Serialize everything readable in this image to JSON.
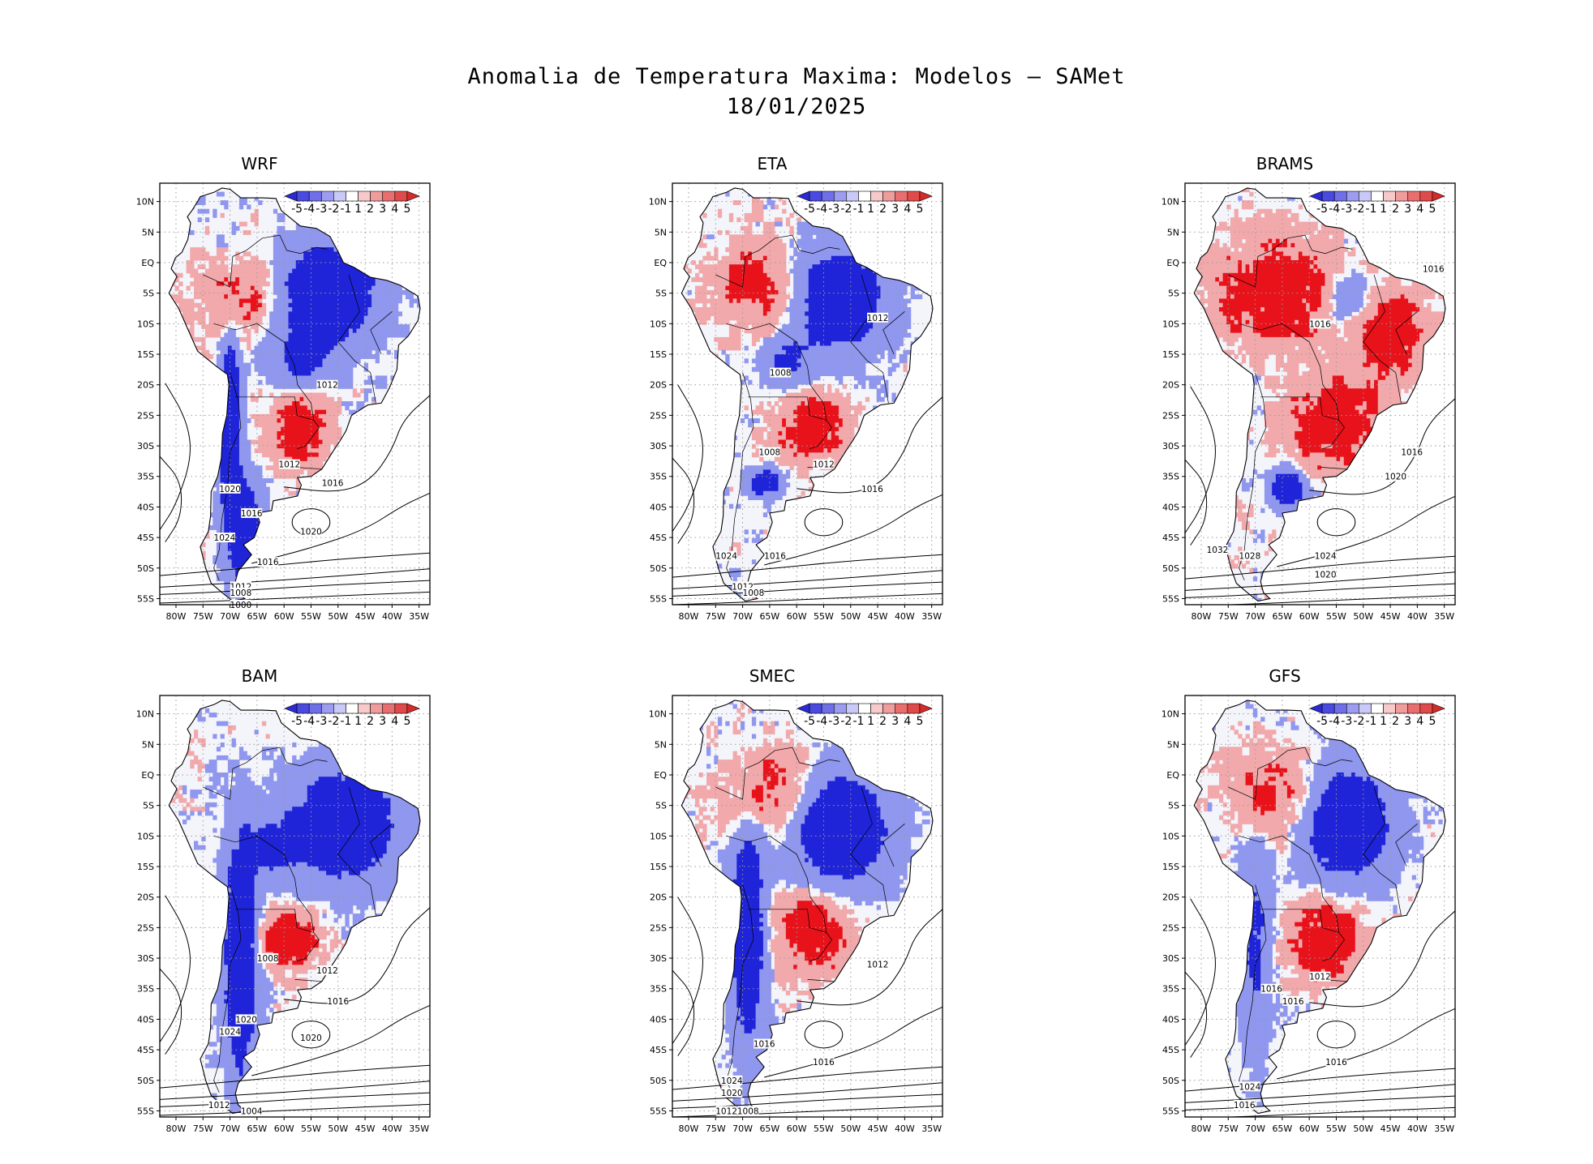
{
  "figure": {
    "title_line1": "Anomalia de Temperatura Maxima: Modelos – SAMet",
    "title_line2": "18/01/2025"
  },
  "map_extent": {
    "lon_min": -83,
    "lon_max": -33,
    "lat_min": -56,
    "lat_max": 13
  },
  "lon_ticks": [
    {
      "label": "80W",
      "value": -80
    },
    {
      "label": "75W",
      "value": -75
    },
    {
      "label": "70W",
      "value": -70
    },
    {
      "label": "65W",
      "value": -65
    },
    {
      "label": "60W",
      "value": -60
    },
    {
      "label": "55W",
      "value": -55
    },
    {
      "label": "50W",
      "value": -50
    },
    {
      "label": "45W",
      "value": -45
    },
    {
      "label": "40W",
      "value": -40
    },
    {
      "label": "35W",
      "value": -35
    }
  ],
  "lat_ticks": [
    {
      "label": "10N",
      "value": 10
    },
    {
      "label": "5N",
      "value": 5
    },
    {
      "label": "EQ",
      "value": 0
    },
    {
      "label": "5S",
      "value": -5
    },
    {
      "label": "10S",
      "value": -10
    },
    {
      "label": "15S",
      "value": -15
    },
    {
      "label": "20S",
      "value": -20
    },
    {
      "label": "25S",
      "value": -25
    },
    {
      "label": "30S",
      "value": -30
    },
    {
      "label": "35S",
      "value": -35
    },
    {
      "label": "40S",
      "value": -40
    },
    {
      "label": "45S",
      "value": -45
    },
    {
      "label": "50S",
      "value": -50
    },
    {
      "label": "55S",
      "value": -55
    }
  ],
  "colorbar": {
    "labels": [
      "-5",
      "-4",
      "-3",
      "-2",
      "-1",
      "1",
      "2",
      "3",
      "4",
      "5"
    ],
    "colors": [
      "#2b2bd4",
      "#4a4ae0",
      "#6f6fe8",
      "#9c9cf0",
      "#c9c9f7",
      "#ffffff",
      "#f7c9c9",
      "#f09c9c",
      "#e86f6f",
      "#e04a4a",
      "#d42b2b"
    ]
  },
  "colors": {
    "cold_strong": "#1f24d8",
    "cold_light": "#8f97ee",
    "warm_strong": "#e8121b",
    "warm_light": "#f2a9ab",
    "land": "#f4f4fb",
    "contour": "#000000",
    "grid": "#9a9a9a"
  },
  "panels": [
    {
      "name": "WRF",
      "anomalies": [
        {
          "lon": -52,
          "lat": -5,
          "rlon": 9,
          "rlat": 8,
          "sign": -1,
          "mag": 2
        },
        {
          "lon": -57,
          "lat": -16,
          "rlon": 6,
          "rlat": 5,
          "sign": -1,
          "mag": 1
        },
        {
          "lon": -68,
          "lat": -6,
          "rlon": 7,
          "rlat": 6,
          "sign": 1,
          "mag": 1
        },
        {
          "lon": -57,
          "lat": -27,
          "rlon": 5,
          "rlat": 5,
          "sign": 1,
          "mag": 2
        },
        {
          "lon": -70,
          "lat": -28,
          "rlon": 2,
          "rlat": 16,
          "sign": -1,
          "mag": 2
        },
        {
          "lon": -67,
          "lat": -44,
          "rlon": 3,
          "rlat": 8,
          "sign": -1,
          "mag": 2
        }
      ],
      "isobars": [
        {
          "label": "1016",
          "lon": -51,
          "lat": -36
        },
        {
          "label": "1020",
          "lon": -55,
          "lat": -44
        },
        {
          "label": "1012",
          "lon": -59,
          "lat": -33
        },
        {
          "label": "1012",
          "lon": -52,
          "lat": -20
        },
        {
          "label": "1016",
          "lon": -66,
          "lat": -41
        },
        {
          "label": "1024",
          "lon": -71,
          "lat": -45
        },
        {
          "label": "1016",
          "lon": -63,
          "lat": -49
        },
        {
          "label": "1012",
          "lon": -68,
          "lat": -53
        },
        {
          "label": "1008",
          "lon": -68,
          "lat": -54
        },
        {
          "label": "1000",
          "lon": -68,
          "lat": -56
        },
        {
          "label": "1020",
          "lon": -70,
          "lat": -37
        }
      ]
    },
    {
      "name": "ETA",
      "anomalies": [
        {
          "lon": -52,
          "lat": -6,
          "rlon": 8,
          "rlat": 8,
          "sign": -1,
          "mag": 2
        },
        {
          "lon": -62,
          "lat": -16,
          "rlon": 5,
          "rlat": 4,
          "sign": -1,
          "mag": 1
        },
        {
          "lon": -68,
          "lat": -4,
          "rlon": 8,
          "rlat": 7,
          "sign": 1,
          "mag": 1
        },
        {
          "lon": -57,
          "lat": -27,
          "rlon": 6,
          "rlat": 5,
          "sign": 1,
          "mag": 2
        },
        {
          "lon": -66,
          "lat": -36,
          "rlon": 3,
          "rlat": 2,
          "sign": -1,
          "mag": 2
        }
      ],
      "isobars": [
        {
          "label": "1016",
          "lon": -46,
          "lat": -37
        },
        {
          "label": "1012",
          "lon": -55,
          "lat": -33
        },
        {
          "label": "1008",
          "lon": -65,
          "lat": -31
        },
        {
          "label": "1012",
          "lon": -45,
          "lat": -9
        },
        {
          "label": "1008",
          "lon": -63,
          "lat": -18
        },
        {
          "label": "1016",
          "lon": -64,
          "lat": -48
        },
        {
          "label": "1024",
          "lon": -73,
          "lat": -48
        },
        {
          "label": "1012",
          "lon": -70,
          "lat": -53
        },
        {
          "label": "1008",
          "lon": -68,
          "lat": -54
        }
      ]
    },
    {
      "name": "BRAMS",
      "anomalies": [
        {
          "lon": -66,
          "lat": -5,
          "rlon": 10,
          "rlat": 8,
          "sign": 1,
          "mag": 2
        },
        {
          "lon": -45,
          "lat": -12,
          "rlon": 6,
          "rlat": 6,
          "sign": 1,
          "mag": 2
        },
        {
          "lon": -55,
          "lat": -26,
          "rlon": 8,
          "rlat": 7,
          "sign": 1,
          "mag": 2
        },
        {
          "lon": -53,
          "lat": -6,
          "rlon": 4,
          "rlat": 4,
          "sign": -1,
          "mag": 1
        },
        {
          "lon": -64,
          "lat": -37,
          "rlon": 3,
          "rlat": 3,
          "sign": -1,
          "mag": 2
        }
      ],
      "isobars": [
        {
          "label": "1016",
          "lon": -37,
          "lat": -1
        },
        {
          "label": "1016",
          "lon": -58,
          "lat": -10
        },
        {
          "label": "1016",
          "lon": -41,
          "lat": -31
        },
        {
          "label": "1020",
          "lon": -44,
          "lat": -35
        },
        {
          "label": "1024",
          "lon": -57,
          "lat": -48
        },
        {
          "label": "1020",
          "lon": -57,
          "lat": -51
        },
        {
          "label": "1032",
          "lon": -77,
          "lat": -47
        },
        {
          "label": "1028",
          "lon": -71,
          "lat": -48
        }
      ]
    },
    {
      "name": "BAM",
      "anomalies": [
        {
          "lon": -49,
          "lat": -8,
          "rlon": 10,
          "rlat": 9,
          "sign": -1,
          "mag": 2
        },
        {
          "lon": -62,
          "lat": -12,
          "rlon": 5,
          "rlat": 5,
          "sign": -1,
          "mag": 1
        },
        {
          "lon": -59,
          "lat": -27,
          "rlon": 5,
          "rlat": 4,
          "sign": 1,
          "mag": 2
        },
        {
          "lon": -68,
          "lat": -30,
          "rlon": 3,
          "rlat": 20,
          "sign": -1,
          "mag": 2
        }
      ],
      "isobars": [
        {
          "label": "1020",
          "lon": -55,
          "lat": -43
        },
        {
          "label": "1016",
          "lon": -50,
          "lat": -37
        },
        {
          "label": "1012",
          "lon": -52,
          "lat": -32
        },
        {
          "label": "1008",
          "lon": -63,
          "lat": -30
        },
        {
          "label": "1020",
          "lon": -67,
          "lat": -40
        },
        {
          "label": "1024",
          "lon": -70,
          "lat": -42
        },
        {
          "label": "1012",
          "lon": -72,
          "lat": -54
        },
        {
          "label": "1004",
          "lon": -66,
          "lat": -55
        }
      ]
    },
    {
      "name": "SMEC",
      "anomalies": [
        {
          "lon": -52,
          "lat": -9,
          "rlon": 9,
          "rlat": 9,
          "sign": -1,
          "mag": 2
        },
        {
          "lon": -65,
          "lat": -3,
          "rlon": 8,
          "rlat": 7,
          "sign": 1,
          "mag": 1
        },
        {
          "lon": -57,
          "lat": -26,
          "rlon": 6,
          "rlat": 6,
          "sign": 1,
          "mag": 2
        },
        {
          "lon": -69,
          "lat": -26,
          "rlon": 3,
          "rlat": 18,
          "sign": -1,
          "mag": 2
        }
      ],
      "isobars": [
        {
          "label": "1012",
          "lon": -45,
          "lat": -31
        },
        {
          "label": "1016",
          "lon": -55,
          "lat": -47
        },
        {
          "label": "1016",
          "lon": -66,
          "lat": -44
        },
        {
          "label": "1024",
          "lon": -72,
          "lat": -50
        },
        {
          "label": "1020",
          "lon": -72,
          "lat": -52
        },
        {
          "label": "1012",
          "lon": -73,
          "lat": -55
        },
        {
          "label": "1008",
          "lon": -69,
          "lat": -55
        }
      ]
    },
    {
      "name": "GFS",
      "anomalies": [
        {
          "lon": -53,
          "lat": -8,
          "rlon": 8,
          "rlat": 9,
          "sign": -1,
          "mag": 2
        },
        {
          "lon": -67,
          "lat": -3,
          "rlon": 8,
          "rlat": 7,
          "sign": 1,
          "mag": 1
        },
        {
          "lon": -57,
          "lat": -27,
          "rlon": 6,
          "rlat": 6,
          "sign": 1,
          "mag": 2
        },
        {
          "lon": -70,
          "lat": -27,
          "rlon": 3,
          "rlat": 18,
          "sign": -1,
          "mag": 1
        }
      ],
      "isobars": [
        {
          "label": "1016",
          "lon": -55,
          "lat": -47
        },
        {
          "label": "1016",
          "lon": -63,
          "lat": -37
        },
        {
          "label": "1012",
          "lon": -58,
          "lat": -33
        },
        {
          "label": "1016",
          "lon": -67,
          "lat": -35
        },
        {
          "label": "1024",
          "lon": -71,
          "lat": -51
        },
        {
          "label": "1016",
          "lon": -72,
          "lat": -54
        }
      ]
    }
  ]
}
